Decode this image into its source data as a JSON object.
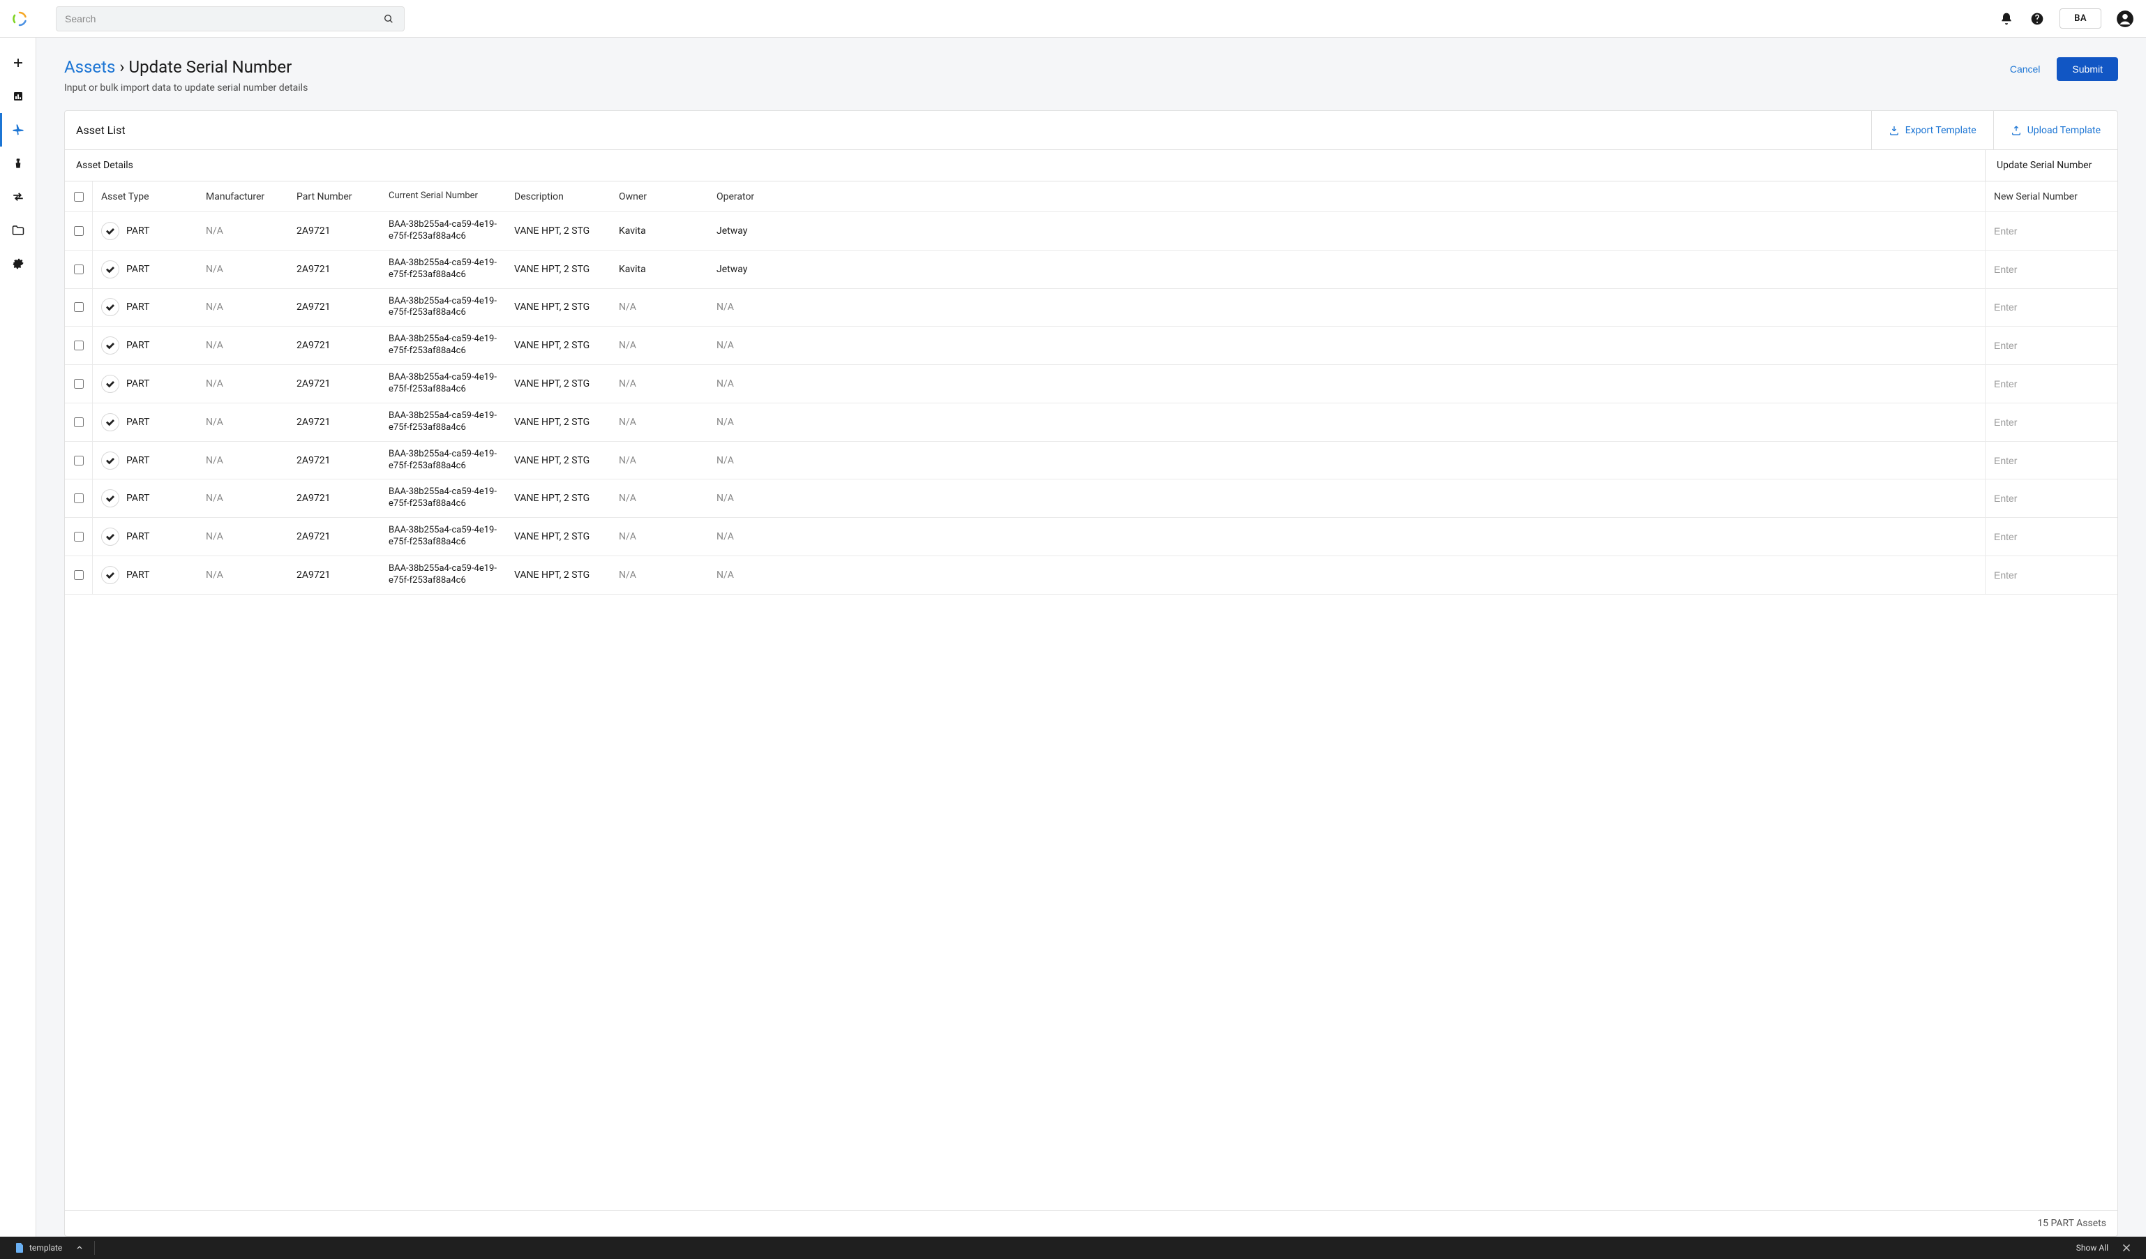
{
  "topbar": {
    "search_placeholder": "Search",
    "user_initials": "BA"
  },
  "breadcrumb": {
    "root": "Assets",
    "separator": "›",
    "current": "Update Serial Number"
  },
  "page": {
    "subtitle": "Input or bulk import data to update serial number details"
  },
  "header_actions": {
    "cancel": "Cancel",
    "submit": "Submit"
  },
  "card": {
    "title": "Asset List",
    "export": "Export Template",
    "upload": "Upload Template"
  },
  "sections": {
    "left": "Asset Details",
    "right": "Update Serial Number"
  },
  "columns": {
    "asset_type": "Asset Type",
    "manufacturer": "Manufacturer",
    "part_number": "Part Number",
    "current_serial": "Current Serial Number",
    "description": "Description",
    "owner": "Owner",
    "operator": "Operator",
    "new_serial": "New Serial Number"
  },
  "new_serial_placeholder": "Enter",
  "rows": [
    {
      "asset_type": "PART",
      "manufacturer": "N/A",
      "part_number": "2A9721",
      "serial": "BAA-38b255a4-ca59-4e19-e75f-f253af88a4c6",
      "description": "VANE HPT, 2 STG",
      "owner": "Kavita",
      "operator": "Jetway"
    },
    {
      "asset_type": "PART",
      "manufacturer": "N/A",
      "part_number": "2A9721",
      "serial": "BAA-38b255a4-ca59-4e19-e75f-f253af88a4c6",
      "description": "VANE HPT, 2 STG",
      "owner": "Kavita",
      "operator": "Jetway"
    },
    {
      "asset_type": "PART",
      "manufacturer": "N/A",
      "part_number": "2A9721",
      "serial": "BAA-38b255a4-ca59-4e19-e75f-f253af88a4c6",
      "description": "VANE HPT, 2 STG",
      "owner": "N/A",
      "operator": "N/A"
    },
    {
      "asset_type": "PART",
      "manufacturer": "N/A",
      "part_number": "2A9721",
      "serial": "BAA-38b255a4-ca59-4e19-e75f-f253af88a4c6",
      "description": "VANE HPT, 2 STG",
      "owner": "N/A",
      "operator": "N/A"
    },
    {
      "asset_type": "PART",
      "manufacturer": "N/A",
      "part_number": "2A9721",
      "serial": "BAA-38b255a4-ca59-4e19-e75f-f253af88a4c6",
      "description": "VANE HPT, 2 STG",
      "owner": "N/A",
      "operator": "N/A"
    },
    {
      "asset_type": "PART",
      "manufacturer": "N/A",
      "part_number": "2A9721",
      "serial": "BAA-38b255a4-ca59-4e19-e75f-f253af88a4c6",
      "description": "VANE HPT, 2 STG",
      "owner": "N/A",
      "operator": "N/A"
    },
    {
      "asset_type": "PART",
      "manufacturer": "N/A",
      "part_number": "2A9721",
      "serial": "BAA-38b255a4-ca59-4e19-e75f-f253af88a4c6",
      "description": "VANE HPT, 2 STG",
      "owner": "N/A",
      "operator": "N/A"
    },
    {
      "asset_type": "PART",
      "manufacturer": "N/A",
      "part_number": "2A9721",
      "serial": "BAA-38b255a4-ca59-4e19-e75f-f253af88a4c6",
      "description": "VANE HPT, 2 STG",
      "owner": "N/A",
      "operator": "N/A"
    },
    {
      "asset_type": "PART",
      "manufacturer": "N/A",
      "part_number": "2A9721",
      "serial": "BAA-38b255a4-ca59-4e19-e75f-f253af88a4c6",
      "description": "VANE HPT, 2 STG",
      "owner": "N/A",
      "operator": "N/A"
    },
    {
      "asset_type": "PART",
      "manufacturer": "N/A",
      "part_number": "2A9721",
      "serial": "BAA-38b255a4-ca59-4e19-e75f-f253af88a4c6",
      "description": "VANE HPT, 2 STG",
      "owner": "N/A",
      "operator": "N/A"
    }
  ],
  "footer_count": "15 PART Assets",
  "os_bar": {
    "file_label": "template",
    "show_all": "Show All"
  },
  "colors": {
    "primary_blue": "#1c75d4",
    "submit_blue": "#1156c4",
    "page_bg": "#f5f6f8",
    "border": "#e0e0e0",
    "muted_text": "#888"
  }
}
